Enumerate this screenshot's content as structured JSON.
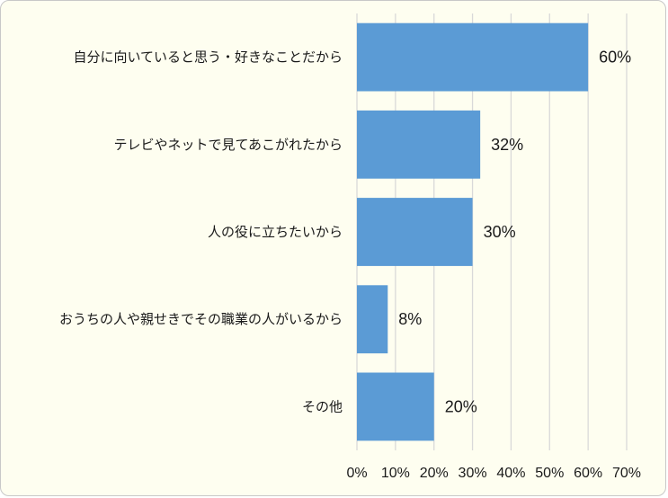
{
  "chart_data": {
    "type": "bar",
    "orientation": "horizontal",
    "categories": [
      "自分に向いていると思う・好きなことだから",
      "テレビやネットで見てあこがれたから",
      "人の役に立ちたいから",
      "おうちの人や親せきでその職業の人がいるから",
      "その他"
    ],
    "values": [
      60,
      32,
      30,
      8,
      20
    ],
    "data_labels": [
      "60%",
      "32%",
      "30%",
      "8%",
      "20%"
    ],
    "xlim": [
      0,
      70
    ],
    "x_ticks": [
      0,
      10,
      20,
      30,
      40,
      50,
      60,
      70
    ],
    "x_tick_labels": [
      "0%",
      "10%",
      "20%",
      "30%",
      "40%",
      "50%",
      "60%",
      "70%"
    ],
    "grid": "vertical",
    "legend": "none",
    "bar_color": "#5b9bd5",
    "grid_color": "#d9d9d9",
    "background_color": "#fefef0"
  }
}
